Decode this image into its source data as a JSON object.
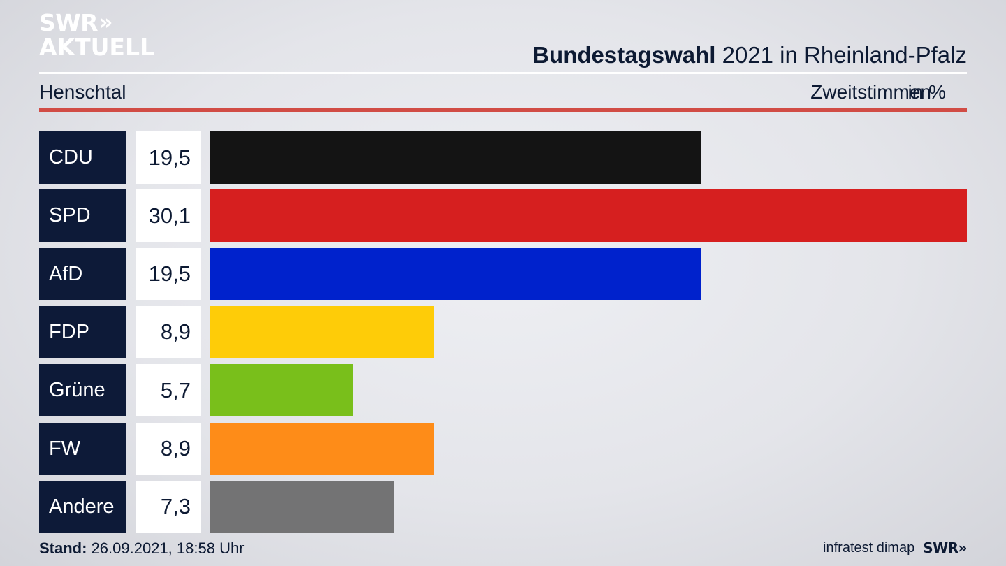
{
  "header": {
    "logo_line1": "SWR",
    "logo_chevrons": "»",
    "logo_line2": "AKTUELL",
    "title_bold": "Bundestagswahl",
    "title_rest": " 2021 in Rheinland-Pfalz",
    "subtitle": "Henschtal",
    "measure": "Zweitstimmen",
    "unit": "in %"
  },
  "footer": {
    "stand_label": "Stand:",
    "stand_value": " 26.09.2021, 18:58 Uhr",
    "source": "infratest dimap",
    "brand": "SWR»"
  },
  "colors": {
    "red_rule": "#d14c45",
    "label_bg": "#0d1a38"
  },
  "chart_data": {
    "type": "bar",
    "orientation": "horizontal",
    "categories": [
      "CDU",
      "SPD",
      "AfD",
      "FDP",
      "Grüne",
      "FW",
      "Andere"
    ],
    "values": [
      19.5,
      30.1,
      19.5,
      8.9,
      5.7,
      8.9,
      7.3
    ],
    "value_labels": [
      "19,5",
      "30,1",
      "19,5",
      "8,9",
      "5,7",
      "8,9",
      "7,3"
    ],
    "colors": [
      "#141414",
      "#d61f1f",
      "#0022cc",
      "#fecc08",
      "#79bf1b",
      "#fe8c18",
      "#737374"
    ],
    "xlim": [
      0,
      30.1
    ]
  }
}
